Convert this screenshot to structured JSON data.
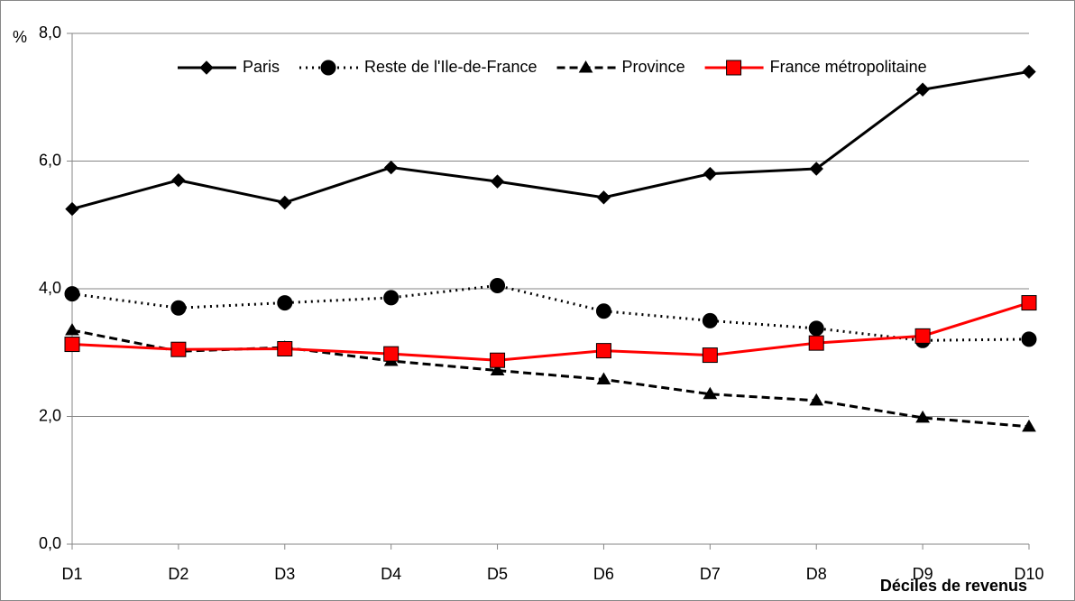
{
  "chart_data": {
    "type": "line",
    "y_label": "%",
    "x_label": "Déciles de revenus",
    "categories": [
      "D1",
      "D2",
      "D3",
      "D4",
      "D5",
      "D6",
      "D7",
      "D8",
      "D9",
      "D10"
    ],
    "series": [
      {
        "name": "Paris",
        "color": "#000000",
        "dash": "solid",
        "marker": "diamond",
        "values": [
          5.25,
          5.7,
          5.35,
          5.9,
          5.68,
          5.43,
          5.8,
          5.88,
          7.12,
          7.4
        ]
      },
      {
        "name": "Reste de l'Ile-de-France",
        "color": "#000000",
        "dash": "dotted",
        "marker": "circle",
        "values": [
          3.92,
          3.7,
          3.78,
          3.86,
          4.05,
          3.65,
          3.5,
          3.38,
          3.19,
          3.21
        ]
      },
      {
        "name": "Province",
        "color": "#000000",
        "dash": "dashed",
        "marker": "triangle",
        "values": [
          3.35,
          3.02,
          3.08,
          2.87,
          2.72,
          2.58,
          2.35,
          2.25,
          1.98,
          1.84
        ]
      },
      {
        "name": "France métropolitaine",
        "color": "#ff0000",
        "dash": "solid",
        "marker": "square",
        "values": [
          3.13,
          3.05,
          3.06,
          2.98,
          2.88,
          3.03,
          2.96,
          3.15,
          3.26,
          3.78
        ]
      }
    ],
    "ylim": [
      0,
      8
    ],
    "yticks": [
      {
        "value": 0,
        "label": "0,0"
      },
      {
        "value": 2,
        "label": "2,0"
      },
      {
        "value": 4,
        "label": "4,0"
      },
      {
        "value": 6,
        "label": "6,0"
      },
      {
        "value": 8,
        "label": "8,0"
      }
    ],
    "grid": true,
    "legend": "top-right"
  }
}
